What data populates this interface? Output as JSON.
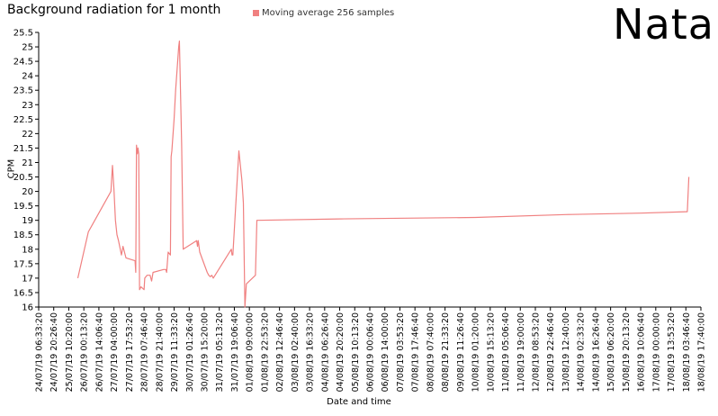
{
  "brand": "Nata",
  "chart_data": {
    "type": "line",
    "title": "Background radiation for 1 month",
    "xlabel": "Date and time",
    "ylabel": "CPM",
    "ylim": [
      16,
      25.5
    ],
    "yticks": [
      "16",
      "16.5",
      "17",
      "17.5",
      "18",
      "18.5",
      "19",
      "19.5",
      "20",
      "20.5",
      "21",
      "21.5",
      "22",
      "22.5",
      "23",
      "23.5",
      "24",
      "24.5",
      "25",
      "25.5"
    ],
    "xticks": [
      "24/07/19 06:33:20",
      "24/07/19 20:26:40",
      "25/07/19 10:20:00",
      "26/07/19 00:13:20",
      "26/07/19 14:06:40",
      "27/07/19 04:00:00",
      "27/07/19 17:53:20",
      "28/07/19 07:46:40",
      "28/07/19 21:40:00",
      "29/07/19 11:33:20",
      "30/07/19 01:26:40",
      "30/07/19 15:20:00",
      "31/07/19 05:13:20",
      "31/07/19 19:06:40",
      "01/08/19 09:00:00",
      "01/08/19 22:53:20",
      "02/08/19 12:46:40",
      "03/08/19 02:40:00",
      "03/08/19 16:33:20",
      "04/08/19 06:26:40",
      "04/08/19 20:20:00",
      "05/08/19 10:13:20",
      "06/08/19 00:06:40",
      "06/08/19 14:00:00",
      "07/08/19 03:53:20",
      "07/08/19 17:46:40",
      "08/08/19 07:40:00",
      "08/08/19 21:33:20",
      "09/08/19 11:26:40",
      "10/08/19 01:20:00",
      "10/08/19 15:13:20",
      "11/08/19 05:06:40",
      "11/08/19 19:00:00",
      "12/08/19 08:53:20",
      "12/08/19 22:46:40",
      "13/08/19 12:40:00",
      "14/08/19 02:33:20",
      "14/08/19 16:26:40",
      "15/08/19 06:20:00",
      "15/08/19 20:13:20",
      "16/08/19 10:06:40",
      "17/08/19 00:00:00",
      "17/08/19 13:53:20",
      "18/08/19 03:46:40",
      "18/08/19 17:40:00"
    ],
    "series": [
      {
        "name": "Moving average 256 samples",
        "color": "#f08080",
        "x": [
          2.6,
          3.3,
          4.8,
          4.9,
          5.0,
          5.1,
          5.2,
          5.3,
          5.5,
          5.6,
          5.8,
          6.4,
          6.45,
          6.5,
          6.55,
          6.6,
          6.65,
          6.7,
          6.8,
          7.0,
          7.05,
          7.2,
          7.4,
          7.5,
          7.6,
          8.3,
          8.45,
          8.5,
          8.6,
          8.75,
          8.8,
          8.85,
          9.0,
          9.1,
          9.3,
          9.35,
          9.5,
          9.6,
          10.5,
          10.55,
          10.6,
          10.7,
          11.2,
          11.3,
          11.4,
          11.5,
          11.6,
          12.8,
          12.85,
          12.9,
          13.3,
          13.5,
          13.55,
          13.6,
          13.7,
          13.8,
          14.4,
          14.5,
          20.0,
          29.0,
          35.0,
          40.0,
          43.1,
          43.2
        ],
        "values": [
          17.0,
          18.6,
          20.0,
          20.9,
          20.1,
          19.0,
          18.5,
          18.3,
          17.8,
          18.1,
          17.7,
          17.6,
          17.2,
          21.6,
          21.3,
          21.5,
          21.3,
          16.6,
          16.7,
          16.6,
          17.0,
          17.1,
          17.1,
          16.9,
          17.2,
          17.3,
          17.3,
          17.2,
          17.9,
          17.8,
          21.2,
          21.4,
          22.5,
          23.5,
          25.0,
          25.2,
          21.6,
          18.0,
          18.3,
          18.1,
          18.3,
          17.9,
          17.2,
          17.1,
          17.05,
          17.1,
          17.0,
          18.0,
          17.8,
          17.8,
          21.4,
          20.4,
          20.0,
          19.6,
          16.0,
          16.8,
          17.1,
          19.0,
          19.05,
          19.1,
          19.2,
          19.25,
          19.3,
          20.5
        ]
      }
    ]
  }
}
